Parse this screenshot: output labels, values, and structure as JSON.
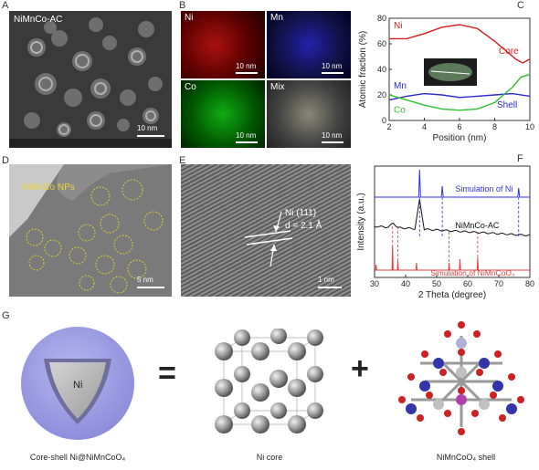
{
  "panels": {
    "A": {
      "label": "A",
      "title": "NiMnCo-AC",
      "scale": "10 nm"
    },
    "B": {
      "label": "B",
      "maps": [
        {
          "name": "Ni",
          "color": "#d22",
          "scale": "10 nm"
        },
        {
          "name": "Mn",
          "color": "#23a",
          "scale": "10 nm"
        },
        {
          "name": "Co",
          "color": "#2a3",
          "scale": "10 nm"
        },
        {
          "name": "Mix",
          "color": "#aaa",
          "scale": "10 nm"
        }
      ]
    },
    "C": {
      "label": "C"
    },
    "D": {
      "label": "D",
      "title": "NiMnCo NPs",
      "scale": "5 nm"
    },
    "E": {
      "label": "E",
      "annot1": "Ni (111)",
      "annot2": "d = 2.1 Å",
      "scale": "1 nm"
    },
    "F": {
      "label": "F"
    },
    "G": {
      "label": "G",
      "core_label": "Ni",
      "eq": "=",
      "plus": "+",
      "cap_left": "Core-shell Ni@NiMnCoO₄",
      "cap_mid": "Ni core",
      "cap_right": "NiMnCoO₄ shell"
    }
  },
  "chart_data": [
    {
      "type": "line",
      "title": "",
      "xlabel": "Position (nm)",
      "ylabel": "Atomic fraction (%)",
      "xlim": [
        2,
        10
      ],
      "ylim": [
        0,
        80
      ],
      "xticks": [
        2,
        4,
        6,
        8,
        10
      ],
      "yticks": [
        0,
        20,
        40,
        60,
        80
      ],
      "series": [
        {
          "name": "Ni",
          "color": "#d42020",
          "x": [
            2,
            3,
            4,
            5,
            6,
            7,
            8,
            8.6,
            9.2,
            9.6,
            10
          ],
          "y": [
            64,
            64,
            68,
            73,
            75,
            72,
            62,
            55,
            48,
            45,
            48
          ]
        },
        {
          "name": "Mn",
          "color": "#2a2ad0",
          "x": [
            2,
            3,
            4,
            5,
            6,
            7,
            8,
            9,
            10
          ],
          "y": [
            16,
            19,
            21,
            20,
            18,
            19,
            20,
            21,
            19
          ]
        },
        {
          "name": "Co",
          "color": "#2ec02e",
          "x": [
            2,
            3,
            4,
            5,
            6,
            7,
            8,
            9,
            9.5,
            10
          ],
          "y": [
            20,
            16,
            12,
            9,
            8,
            9,
            14,
            26,
            34,
            36
          ]
        }
      ],
      "annotations": [
        "Core",
        "Shell"
      ]
    },
    {
      "type": "line",
      "title": "",
      "xlabel": "2 Theta (degree)",
      "ylabel": "Intensity (a.u.)",
      "xlim": [
        30,
        80
      ],
      "xticks": [
        30,
        40,
        50,
        60,
        70,
        80
      ],
      "series": [
        {
          "name": "Simulation of Ni",
          "color": "#3030e0",
          "peaks": [
            44.5,
            51.8,
            76.4
          ]
        },
        {
          "name": "NiMnCo-AC",
          "color": "#111"
        },
        {
          "name": "Simulation of NiMnCoO₄",
          "color": "#e04040",
          "peaks": [
            30.5,
            35.8,
            37.5,
            43.5,
            54,
            57.5,
            63.2
          ]
        }
      ]
    }
  ]
}
